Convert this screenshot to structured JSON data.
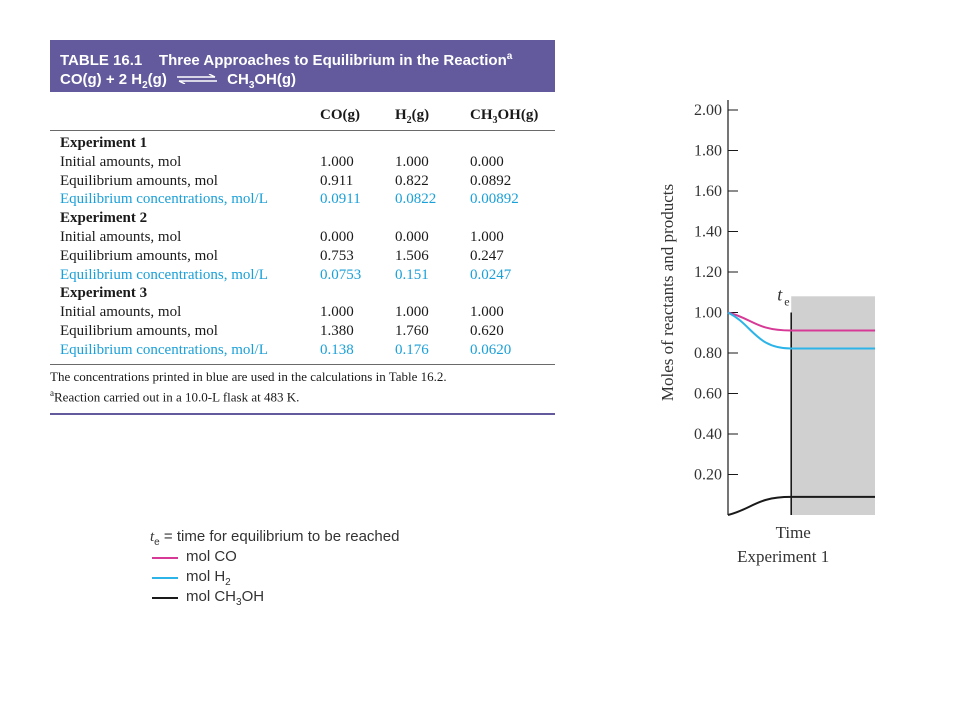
{
  "table": {
    "title": "TABLE 16.1",
    "title_text": "Three Approaches to Equilibrium in the Reaction",
    "title_sup": "a",
    "reaction_left": "CO(g) + 2 H",
    "reaction_sub": "2",
    "reaction_left_end": "(g)",
    "reaction_right": "CH",
    "reaction_right_sub": "3",
    "reaction_right_end": "OH(g)",
    "columns": {
      "co": "CO(g)",
      "h2_a": "H",
      "h2_sub": "2",
      "h2_b": "(g)",
      "ch3oh_a": "CH",
      "ch3oh_sub": "3",
      "ch3oh_b": "OH(g)"
    },
    "rows": [
      {
        "kind": "exp",
        "label": "Experiment 1"
      },
      {
        "kind": "normal",
        "label": "Initial amounts, mol",
        "co": "1.000",
        "h2": "1.000",
        "ch3oh": "0.000"
      },
      {
        "kind": "normal",
        "label": "Equilibrium amounts, mol",
        "co": "0.911",
        "h2": "0.822",
        "ch3oh": "0.0892"
      },
      {
        "kind": "blue",
        "label": "Equilibrium concentrations, mol/L",
        "co": "0.0911",
        "h2": "0.0822",
        "ch3oh": "0.00892"
      },
      {
        "kind": "exp",
        "label": "Experiment 2"
      },
      {
        "kind": "normal",
        "label": "Initial amounts, mol",
        "co": "0.000",
        "h2": "0.000",
        "ch3oh": "1.000"
      },
      {
        "kind": "normal",
        "label": "Equilibrium amounts, mol",
        "co": "0.753",
        "h2": "1.506",
        "ch3oh": "0.247"
      },
      {
        "kind": "blue",
        "label": "Equilibrium concentrations, mol/L",
        "co": "0.0753",
        "h2": "0.151",
        "ch3oh": "0.0247"
      },
      {
        "kind": "exp",
        "label": "Experiment 3"
      },
      {
        "kind": "normal",
        "label": "Initial amounts, mol",
        "co": "1.000",
        "h2": "1.000",
        "ch3oh": "1.000"
      },
      {
        "kind": "normal",
        "label": "Equilibrium amounts, mol",
        "co": "1.380",
        "h2": "1.760",
        "ch3oh": "0.620"
      },
      {
        "kind": "blue",
        "label": "Equilibrium concentrations, mol/L",
        "co": "0.138",
        "h2": "0.176",
        "ch3oh": "0.0620"
      }
    ],
    "footnote_1": "The concentrations printed in blue are used in the calculations in Table 16.2.",
    "footnote_2_sup": "a",
    "footnote_2": "Reaction carried out in a 10.0-L flask at 483 K."
  },
  "legend": {
    "te_symbol": "t",
    "te_sub": "e",
    "te_text": " = time for equilibrium to be reached",
    "items": [
      {
        "label": "mol CO",
        "color": "#d63a96"
      },
      {
        "label_a": "mol H",
        "label_sub": "2",
        "label_b": "",
        "color": "#2cb4e8"
      },
      {
        "label_a": "mol CH",
        "label_sub": "3",
        "label_b": "OH",
        "color": "#1a1a1a"
      }
    ]
  },
  "chart_data": {
    "type": "line",
    "title": "",
    "xlabel": "Time",
    "subtitle": "Experiment 1",
    "ylabel": "Moles of reactants and products",
    "ylim": [
      0,
      2.0
    ],
    "yticks": [
      "2.00",
      "1.80",
      "1.60",
      "1.40",
      "1.20",
      "1.00",
      "0.80",
      "0.60",
      "0.40",
      "0.20"
    ],
    "te_label": "t",
    "te_sub": "e",
    "te_fraction": 0.43,
    "series": [
      {
        "name": "mol CO",
        "color": "#d63a96",
        "start": 1.0,
        "equilibrium": 0.911
      },
      {
        "name": "mol H2",
        "color": "#2cb4e8",
        "start": 1.0,
        "equilibrium": 0.822
      },
      {
        "name": "mol CH3OH",
        "color": "#1a1a1a",
        "start": 0.0,
        "equilibrium": 0.0892
      }
    ]
  }
}
